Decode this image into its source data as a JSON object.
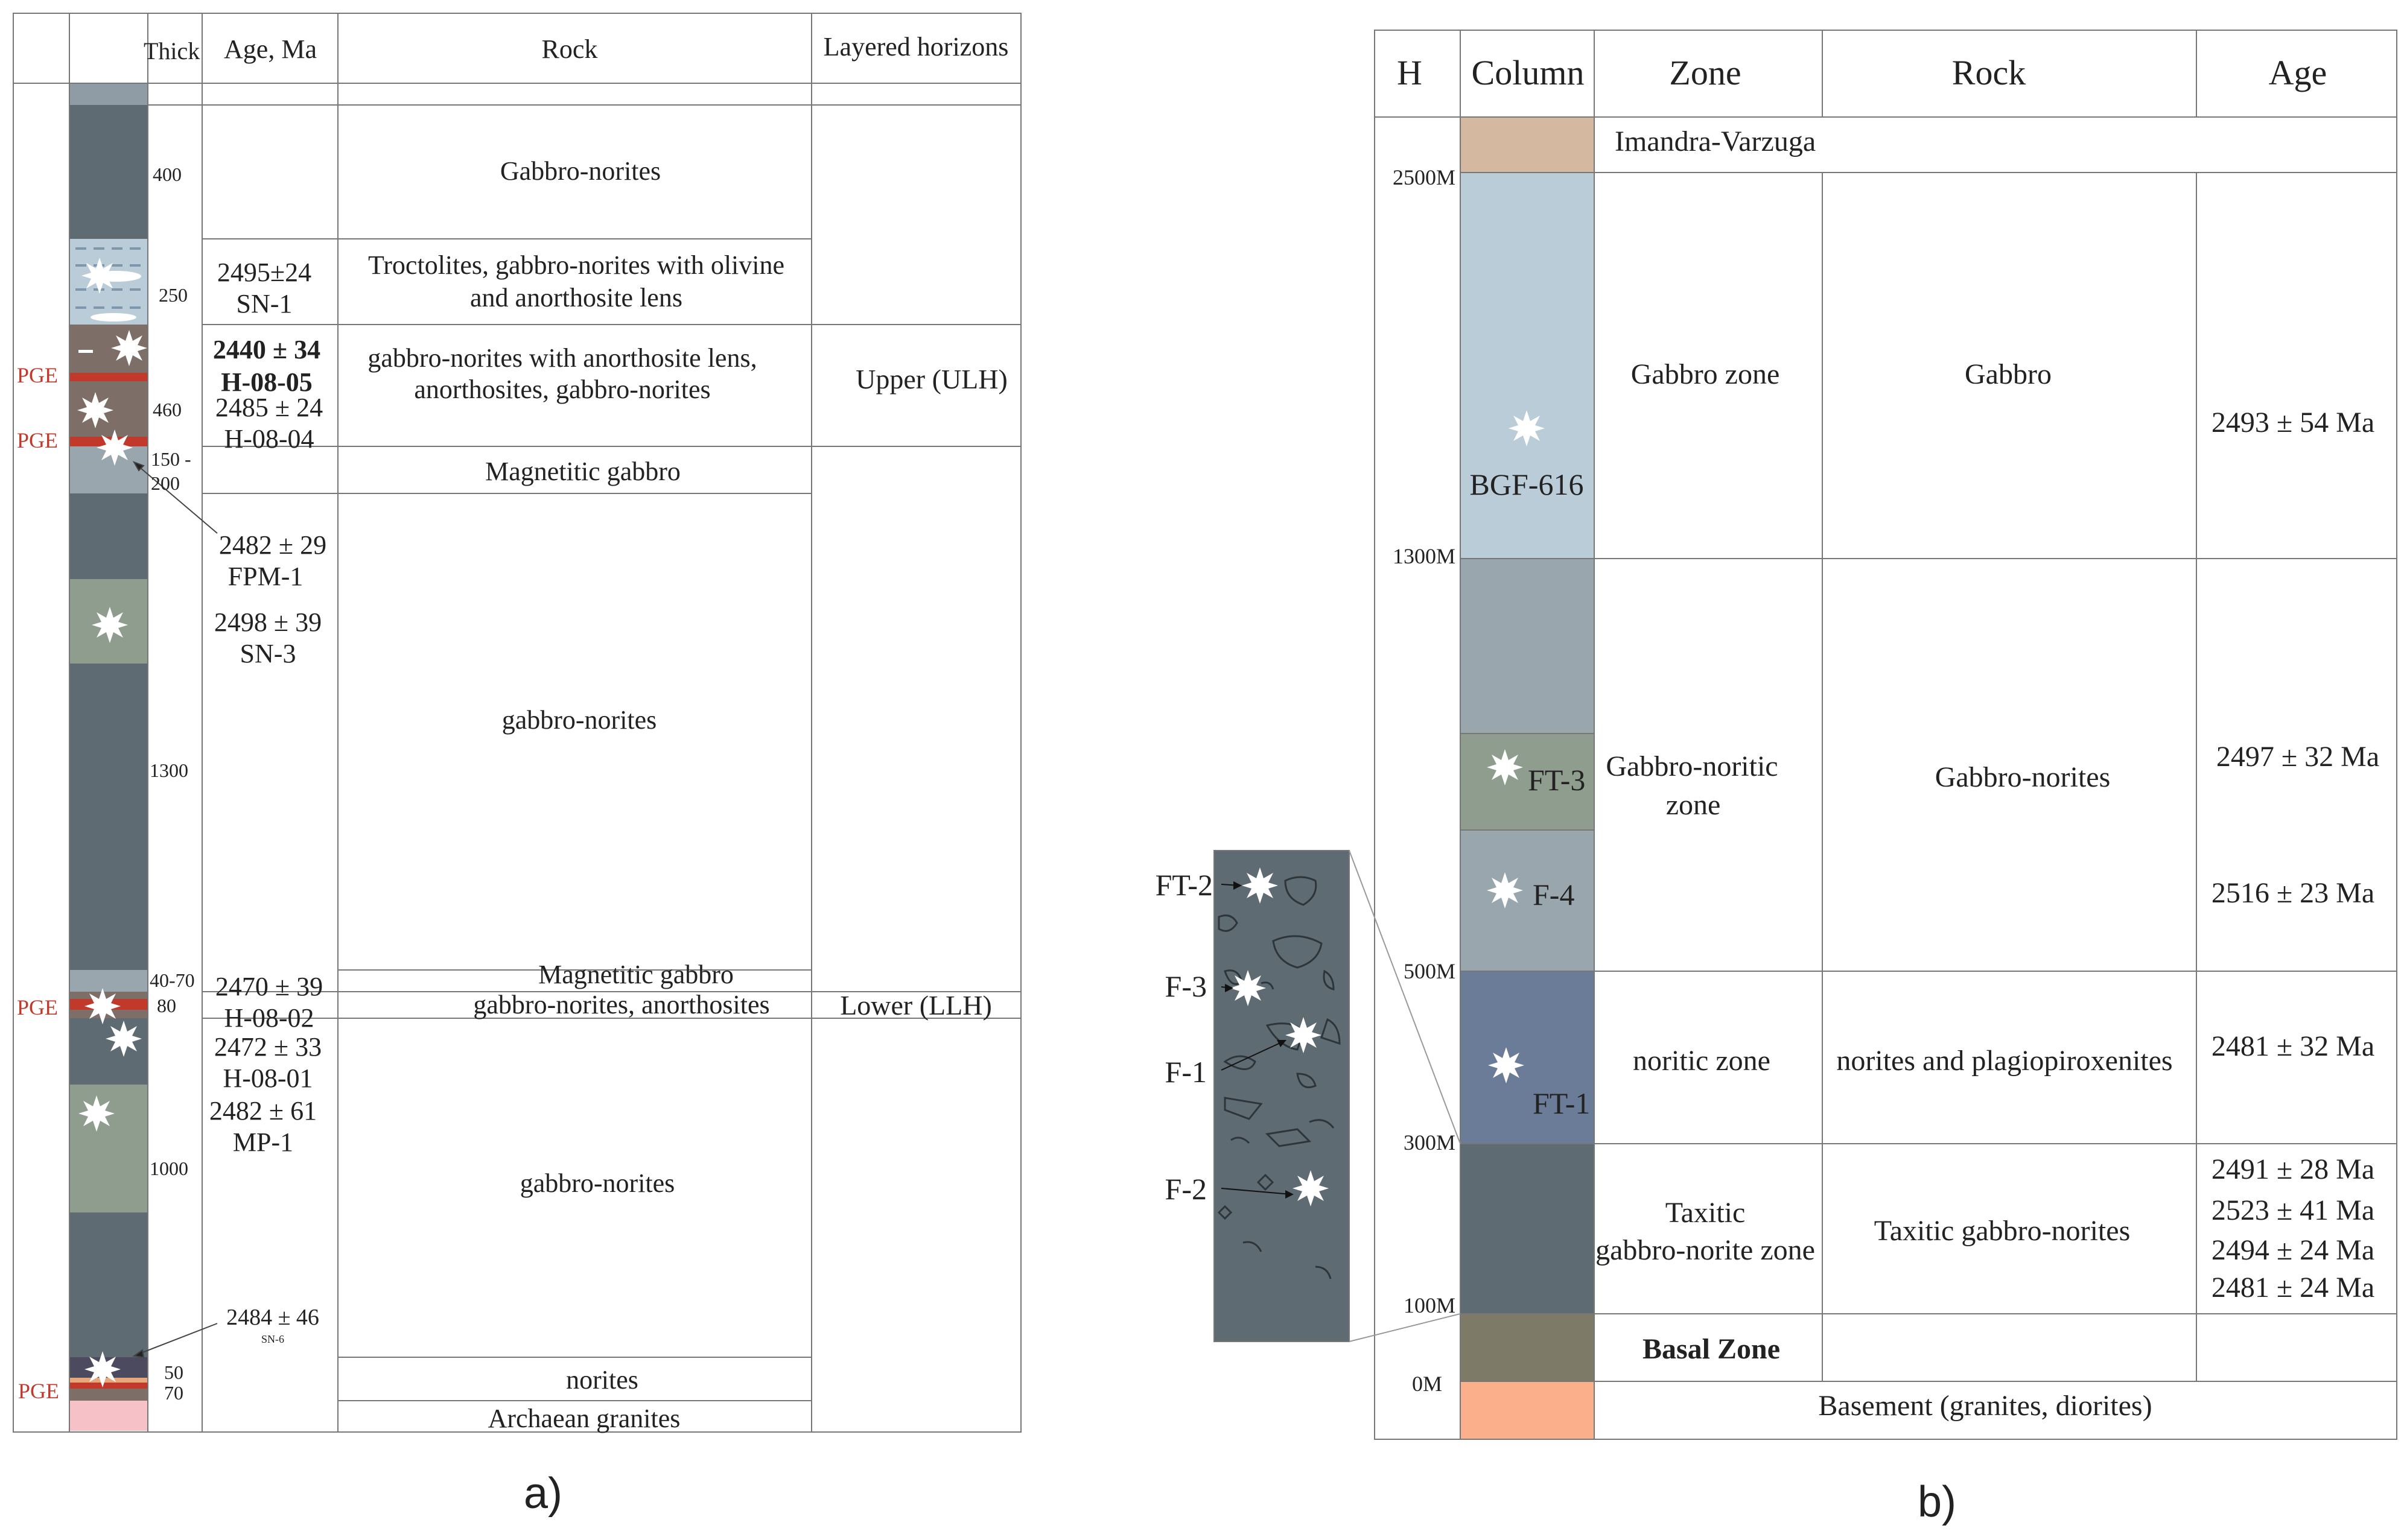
{
  "panel_a": {
    "headers": {
      "thick": "Thick",
      "age": "Age, Ma",
      "rock": "Rock",
      "horizons": "Layered horizons"
    },
    "thicknesses": [
      "400",
      "250",
      "460",
      "150 -",
      "200",
      "1300",
      "40-70",
      "80",
      "1000",
      "50",
      "70"
    ],
    "pge_labels": [
      "PGE",
      "PGE",
      "PGE",
      "PGE"
    ],
    "ages": {
      "sn1_age": "2495±24",
      "sn1_id": "SN-1",
      "h0805_age": "2440 ± 34",
      "h0805_id": "H-08-05",
      "h0804_age": "2485 ± 24",
      "h0804_id": "H-08-04",
      "fpm1_age": "2482 ± 29",
      "fpm1_id": "FPM-1",
      "sn3_age": "2498 ± 39",
      "sn3_id": "SN-3",
      "h0802_age": "2470 ± 39",
      "h0802_id": "H-08-02",
      "h0801_age": "2472 ± 33",
      "h0801_id": "H-08-01",
      "mp1_age": "2482 ± 61",
      "mp1_id": "MP-1",
      "sn6_age": "2484 ± 46",
      "sn6_id": "SN-6"
    },
    "rocks": {
      "r1": "Gabbro-norites",
      "r2a": "Troctolites, gabbro-norites with olivine",
      "r2b": "and anorthosite lens",
      "r3a": "gabbro-norites with anorthosite lens,",
      "r3b": "anorthosites, gabbro-norites",
      "r4": "Magnetitic gabbro",
      "r5": "gabbro-norites",
      "r6": "Magnetitic gabbro",
      "r7": "gabbro-norites, anorthosites",
      "r8": "gabbro-norites",
      "r9": "norites",
      "r10": "Archaean granites"
    },
    "horizons": {
      "upper": "Upper (ULH)",
      "lower": "Lower (LLH)"
    },
    "caption": "a)"
  },
  "panel_b": {
    "headers": {
      "h": "H",
      "column": "Column",
      "zone": "Zone",
      "rock": "Rock",
      "age": "Age"
    },
    "depths": [
      "2500M",
      "1300M",
      "500M",
      "300M",
      "100M",
      "0M"
    ],
    "imandra": "Imandra-Varzuga",
    "zones": {
      "gabbro": "Gabbro zone",
      "gabbro_noritic_a": "Gabbro-noritic",
      "gabbro_noritic_b": "zone",
      "noritic": "noritic zone",
      "taxitic_a": "Taxitic",
      "taxitic_b": "gabbro-norite zone",
      "basal": "Basal Zone"
    },
    "rocks": {
      "gabbro": "Gabbro",
      "gabbro_norites": "Gabbro-norites",
      "norites": "norites and plagiopiroxenites",
      "taxitic": "Taxitic gabbro-norites"
    },
    "basement": "Basement (granites, diorites)",
    "ages": {
      "gabbro": "2493 ± 54 Ma",
      "ft3": "2497 ± 32 Ma",
      "f4": "2516 ± 23 Ma",
      "noritic": "2481 ± 32 Ma",
      "tax1": "2491 ± 28 Ma",
      "tax2": "2523 ± 41 Ma",
      "tax3": "2494 ± 24 Ma",
      "tax4": "2481 ± 24 Ma"
    },
    "samples": {
      "bgf": "BGF-616",
      "ft3": "FT-3",
      "f4": "F-4",
      "ft1": "FT-1"
    },
    "inset_labels": {
      "ft2": "FT-2",
      "f3": "F-3",
      "f1": "F-1",
      "f2": "F-2"
    },
    "caption": "b)"
  },
  "colors": {
    "dark_gabbro": "#5f6b72",
    "light_blue": "#b9ccd8",
    "brown": "#7d6e68",
    "pge_red": "#c0392b",
    "grey_green": "#8f9d8e",
    "pink": "#f6c2c8",
    "tan": "#d5b8a0",
    "steel": "#9aa6ae",
    "indigo": "#6b7c98",
    "basal": "#7e7a68",
    "salmon": "#fbb08b"
  }
}
